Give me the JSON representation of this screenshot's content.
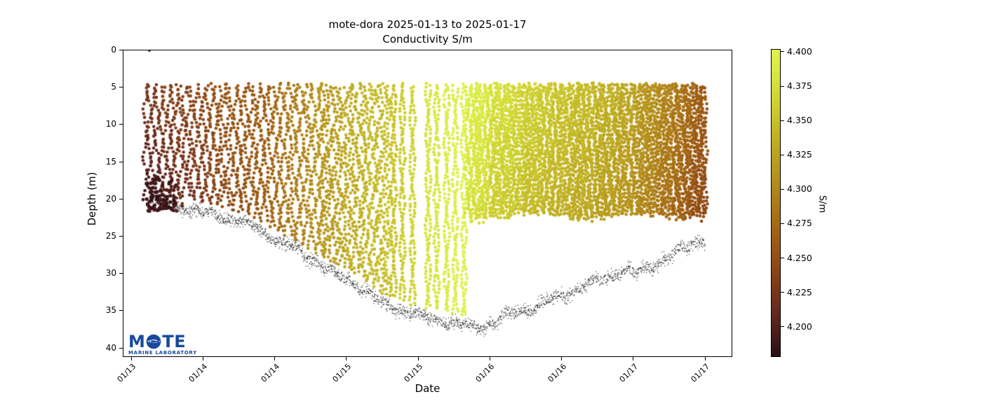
{
  "logo": {
    "prefix": "M",
    "suffix": "TE",
    "subtext": "MARINE LABORATORY",
    "color": "#174a9c"
  },
  "chart_data": {
    "type": "scatter",
    "title": "mote-dora 2025-01-13 to 2025-01-17",
    "subtitle": "Conductivity S/m",
    "xlabel": "Date",
    "ylabel": "Depth (m)",
    "x_axis": {
      "unit": "days since 2025-01-13 00:00",
      "range": [
        0.441,
        4.691
      ],
      "ticks": [
        {
          "t": 0.5,
          "label": "01/13"
        },
        {
          "t": 1.0,
          "label": "01/14"
        },
        {
          "t": 1.5,
          "label": "01/14"
        },
        {
          "t": 2.0,
          "label": "01/15"
        },
        {
          "t": 2.5,
          "label": "01/15"
        },
        {
          "t": 3.0,
          "label": "01/16"
        },
        {
          "t": 3.5,
          "label": "01/16"
        },
        {
          "t": 4.0,
          "label": "01/17"
        },
        {
          "t": 4.5,
          "label": "01/17"
        }
      ]
    },
    "y_axis": {
      "range": [
        0,
        41.2
      ],
      "inverted": true,
      "ticks": [
        0,
        5,
        10,
        15,
        20,
        25,
        30,
        35,
        40
      ]
    },
    "colorbar": {
      "label": "S/m",
      "vmin": 4.178,
      "vmax": 4.402,
      "ticks": [
        4.4,
        4.375,
        4.35,
        4.325,
        4.3,
        4.275,
        4.25,
        4.225,
        4.2
      ],
      "tick_labels": [
        "4.400",
        "4.375",
        "4.350",
        "4.325",
        "4.300",
        "4.275",
        "4.250",
        "4.225",
        "4.200"
      ],
      "colormap_stops": [
        [
          4.402,
          "#e0f24e"
        ],
        [
          4.38,
          "#d7e43c"
        ],
        [
          4.357,
          "#cbc92d"
        ],
        [
          4.335,
          "#bfae23"
        ],
        [
          4.312,
          "#b6941d"
        ],
        [
          4.29,
          "#ad7a18"
        ],
        [
          4.268,
          "#a26113"
        ],
        [
          4.245,
          "#8f4a15"
        ],
        [
          4.227,
          "#7c371b"
        ],
        [
          4.209,
          "#64281e"
        ],
        [
          4.194,
          "#491b1b"
        ],
        [
          4.178,
          "#2a1013"
        ]
      ]
    },
    "series": [
      {
        "name": "conductivity-profiles",
        "marker_radius_px": 2.3,
        "top_depth_m": 4.7,
        "sections": [
          {
            "kind": "yo-yo-columns",
            "t_start": 0.612,
            "t_end": 1.84,
            "column_spacing_days": 0.0545,
            "bottom": "seafloor"
          },
          {
            "kind": "dense-columns",
            "t_start": 1.84,
            "t_end": 2.3,
            "column_spacing_days": 0.024,
            "bottom": "seafloor"
          },
          {
            "kind": "sparse-columns",
            "column_times": [
              2.33,
              2.39,
              2.46,
              2.57,
              2.63,
              2.7,
              2.76,
              2.82
            ],
            "bottom": "seafloor"
          },
          {
            "kind": "dense-columns",
            "t_start": 2.85,
            "t_end": 4.5,
            "column_spacing_days": 0.0196,
            "bottom_depth_m": 22.3
          }
        ],
        "conductivity_timeline_s_per_m": [
          [
            0.612,
            4.228
          ],
          [
            0.8,
            4.235
          ],
          [
            1.0,
            4.245
          ],
          [
            1.2,
            4.255
          ],
          [
            1.45,
            4.268
          ],
          [
            1.7,
            4.3
          ],
          [
            2.0,
            4.33
          ],
          [
            2.2,
            4.345
          ],
          [
            2.4,
            4.36
          ],
          [
            2.55,
            4.375
          ],
          [
            2.7,
            4.39
          ],
          [
            2.82,
            4.398
          ],
          [
            2.95,
            4.392
          ],
          [
            3.0,
            4.383
          ],
          [
            3.15,
            4.372
          ],
          [
            3.35,
            4.36
          ],
          [
            3.6,
            4.35
          ],
          [
            3.8,
            4.34
          ],
          [
            4.0,
            4.325
          ],
          [
            4.15,
            4.31
          ],
          [
            4.3,
            4.29
          ],
          [
            4.42,
            4.272
          ],
          [
            4.5,
            4.258
          ]
        ],
        "early_depth_darkening": {
          "before_t": 1.45,
          "max_delta_s_per_m": -0.034
        },
        "deep_cluster": {
          "t_start": 0.612,
          "t_end": 0.82,
          "depth_range_m": [
            17.2,
            21.5
          ],
          "delta_s_per_m": -0.035
        }
      },
      {
        "name": "bottom-track",
        "marker": "pixel-dots",
        "color": "#0a0a0a",
        "points_t_depth_m": [
          [
            0.64,
            19.8
          ],
          [
            0.72,
            20.5
          ],
          [
            0.81,
            20.9
          ],
          [
            0.9,
            21.2
          ],
          [
            1.05,
            22.0
          ],
          [
            1.2,
            22.6
          ],
          [
            1.35,
            23.5
          ],
          [
            1.5,
            25.3
          ],
          [
            1.65,
            26.8
          ],
          [
            1.79,
            28.4
          ],
          [
            1.93,
            30.2
          ],
          [
            2.03,
            31.0
          ],
          [
            2.15,
            32.5
          ],
          [
            2.23,
            33.8
          ],
          [
            2.33,
            34.6
          ],
          [
            2.42,
            35.2
          ],
          [
            2.52,
            35.7
          ],
          [
            2.62,
            36.1
          ],
          [
            2.72,
            36.6
          ],
          [
            2.82,
            37.0
          ],
          [
            2.93,
            37.2
          ],
          [
            3.05,
            36.3
          ],
          [
            3.11,
            35.5
          ],
          [
            3.22,
            35.0
          ],
          [
            3.3,
            34.7
          ],
          [
            3.4,
            33.6
          ],
          [
            3.5,
            32.9
          ],
          [
            3.6,
            32.2
          ],
          [
            3.7,
            31.4
          ],
          [
            3.8,
            30.6
          ],
          [
            3.89,
            30.0
          ],
          [
            3.96,
            29.6
          ],
          [
            4.02,
            30.1
          ],
          [
            4.08,
            29.3
          ],
          [
            4.18,
            28.4
          ],
          [
            4.28,
            27.3
          ],
          [
            4.38,
            26.3
          ],
          [
            4.46,
            25.6
          ],
          [
            4.5,
            25.3
          ]
        ]
      },
      {
        "name": "surface-stray-point",
        "t": 0.627,
        "depth_m": 0.1,
        "color": "#3a1014"
      }
    ]
  }
}
